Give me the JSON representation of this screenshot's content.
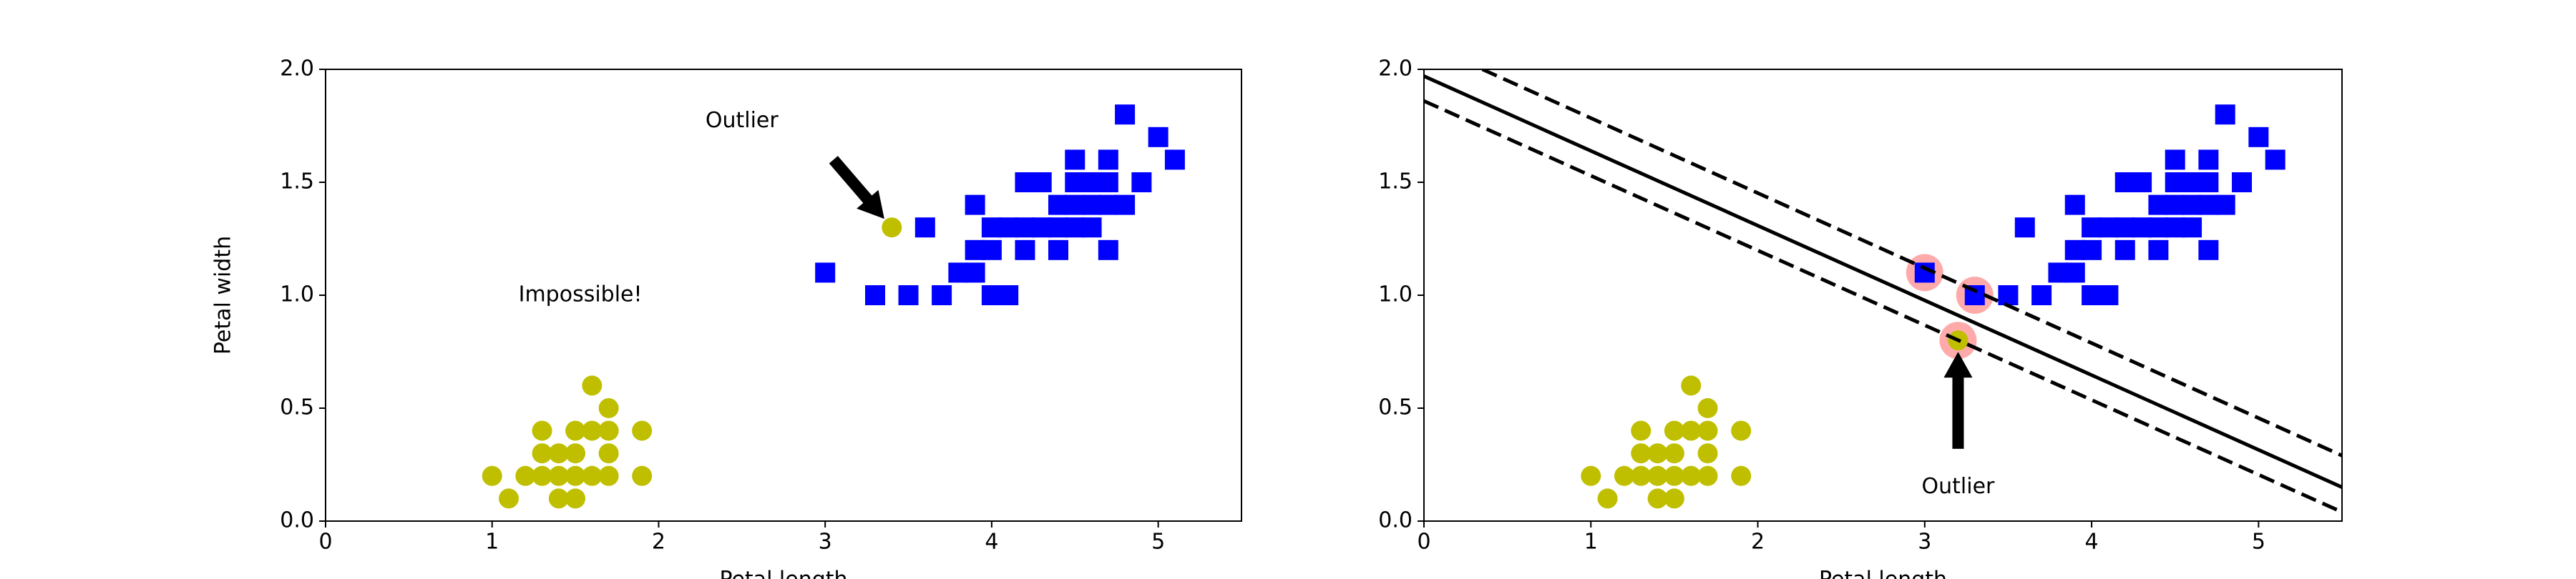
{
  "chart_data": [
    {
      "type": "scatter",
      "ylabel": "Petal width",
      "xlabel": "Petal length",
      "xlim": [
        0,
        5.5
      ],
      "ylim": [
        0,
        2
      ],
      "xticks": [
        0,
        1,
        2,
        3,
        4,
        5
      ],
      "yticks": [
        {
          "value": 0,
          "label": "0.0"
        },
        {
          "value": 0.5,
          "label": "0.5"
        },
        {
          "value": 1,
          "label": "1.0"
        },
        {
          "value": 1.5,
          "label": "1.5"
        },
        {
          "value": 2,
          "label": "2.0"
        }
      ],
      "series": [
        {
          "color": "#bfbf00",
          "marker": "circle",
          "x": [
            1.0,
            1.1,
            1.2,
            1.3,
            1.3,
            1.3,
            1.4,
            1.4,
            1.4,
            1.5,
            1.5,
            1.5,
            1.5,
            1.6,
            1.6,
            1.6,
            1.7,
            1.7,
            1.7,
            1.7,
            1.9,
            1.9,
            3.4
          ],
          "y": [
            0.2,
            0.1,
            0.2,
            0.2,
            0.3,
            0.4,
            0.1,
            0.2,
            0.3,
            0.1,
            0.2,
            0.3,
            0.4,
            0.2,
            0.4,
            0.6,
            0.2,
            0.3,
            0.4,
            0.5,
            0.2,
            0.4,
            1.3
          ]
        },
        {
          "color": "#0000ff",
          "marker": "square",
          "x": [
            3.0,
            3.3,
            3.5,
            3.6,
            3.7,
            3.8,
            3.9,
            3.9,
            3.9,
            4.0,
            4.0,
            4.0,
            4.1,
            4.1,
            4.2,
            4.2,
            4.2,
            4.3,
            4.3,
            4.4,
            4.4,
            4.4,
            4.5,
            4.5,
            4.5,
            4.5,
            4.6,
            4.6,
            4.6,
            4.7,
            4.7,
            4.7,
            4.7,
            4.8,
            4.8,
            4.9,
            5.0,
            5.1
          ],
          "y": [
            1.1,
            1.0,
            1.0,
            1.3,
            1.0,
            1.1,
            1.1,
            1.2,
            1.4,
            1.0,
            1.2,
            1.3,
            1.0,
            1.3,
            1.2,
            1.3,
            1.5,
            1.3,
            1.5,
            1.2,
            1.3,
            1.4,
            1.3,
            1.4,
            1.5,
            1.6,
            1.3,
            1.4,
            1.5,
            1.2,
            1.4,
            1.5,
            1.6,
            1.4,
            1.8,
            1.5,
            1.7,
            1.6
          ]
        }
      ],
      "annotations": [
        {
          "text": "Outlier",
          "color": "#000000",
          "size": "medium",
          "xy": [
            3.4,
            1.3
          ],
          "xytext": [
            2.5,
            1.77
          ],
          "arrow_from": [
            3.05,
            1.6
          ]
        },
        {
          "text": "Impossible!",
          "color": "#ff0000",
          "size": "large",
          "xytext": [
            1.53,
            1.0
          ]
        }
      ]
    },
    {
      "type": "scatter",
      "xlabel": "Petal length",
      "xlim": [
        0,
        5.5
      ],
      "ylim": [
        0,
        2
      ],
      "xticks": [
        0,
        1,
        2,
        3,
        4,
        5
      ],
      "yticks": [
        {
          "value": 0,
          "label": "0.0"
        },
        {
          "value": 0.5,
          "label": "0.5"
        },
        {
          "value": 1,
          "label": "1.0"
        },
        {
          "value": 1.5,
          "label": "1.5"
        },
        {
          "value": 2,
          "label": "2.0"
        }
      ],
      "highlights": {
        "color": "#ffaaaa",
        "x": [
          3.0,
          3.3,
          3.2
        ],
        "y": [
          1.1,
          1.0,
          0.8
        ]
      },
      "series": [
        {
          "color": "#bfbf00",
          "marker": "circle",
          "x": [
            1.0,
            1.1,
            1.2,
            1.3,
            1.3,
            1.3,
            1.4,
            1.4,
            1.4,
            1.5,
            1.5,
            1.5,
            1.5,
            1.6,
            1.6,
            1.6,
            1.7,
            1.7,
            1.7,
            1.7,
            1.9,
            1.9,
            3.2
          ],
          "y": [
            0.2,
            0.1,
            0.2,
            0.2,
            0.3,
            0.4,
            0.1,
            0.2,
            0.3,
            0.1,
            0.2,
            0.3,
            0.4,
            0.2,
            0.4,
            0.6,
            0.2,
            0.3,
            0.4,
            0.5,
            0.2,
            0.4,
            0.8
          ]
        },
        {
          "color": "#0000ff",
          "marker": "square",
          "x": [
            3.0,
            3.3,
            3.5,
            3.6,
            3.7,
            3.8,
            3.9,
            3.9,
            3.9,
            4.0,
            4.0,
            4.0,
            4.1,
            4.1,
            4.2,
            4.2,
            4.2,
            4.3,
            4.3,
            4.4,
            4.4,
            4.4,
            4.5,
            4.5,
            4.5,
            4.5,
            4.6,
            4.6,
            4.6,
            4.7,
            4.7,
            4.7,
            4.7,
            4.8,
            4.8,
            4.9,
            5.0,
            5.1
          ],
          "y": [
            1.1,
            1.0,
            1.0,
            1.3,
            1.0,
            1.1,
            1.1,
            1.2,
            1.4,
            1.0,
            1.2,
            1.3,
            1.0,
            1.3,
            1.2,
            1.3,
            1.5,
            1.3,
            1.5,
            1.2,
            1.3,
            1.4,
            1.3,
            1.4,
            1.5,
            1.6,
            1.3,
            1.4,
            1.5,
            1.2,
            1.4,
            1.5,
            1.6,
            1.4,
            1.8,
            1.5,
            1.7,
            1.6
          ]
        }
      ],
      "lines": [
        {
          "style": "solid",
          "x": [
            0,
            5.5
          ],
          "y": [
            1.97,
            0.15
          ]
        },
        {
          "style": "dashed",
          "x": [
            0.35,
            5.5
          ],
          "y": [
            2.0,
            0.29
          ]
        },
        {
          "style": "dashed",
          "x": [
            0,
            5.5
          ],
          "y": [
            1.86,
            0.04
          ]
        }
      ],
      "annotations": [
        {
          "text": "Outlier",
          "color": "#000000",
          "size": "medium",
          "xy": [
            3.2,
            0.8
          ],
          "xytext": [
            3.2,
            0.15
          ],
          "arrow_from": [
            3.2,
            0.32
          ]
        }
      ]
    }
  ]
}
